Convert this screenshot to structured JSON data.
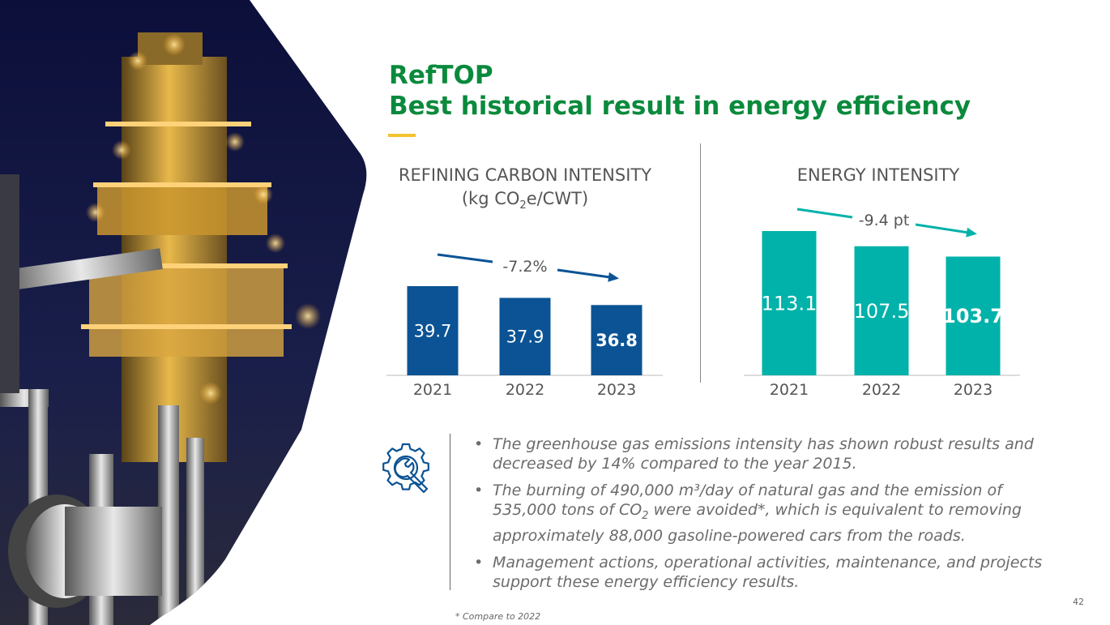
{
  "title": {
    "line1": "RefTOP",
    "line2": "Best historical result in energy efficiency"
  },
  "colors": {
    "title_green": "#0a8a3c",
    "accent_yellow": "#f2c230",
    "carbon_blue": "#0b5394",
    "energy_teal": "#00b2a9"
  },
  "chart_data": [
    {
      "type": "bar",
      "title": "REFINING CARBON INTENSITY",
      "subtitle_pre": "(kg CO",
      "subtitle_sub": "2",
      "subtitle_post": "e/CWT)",
      "categories": [
        "2021",
        "2022",
        "2023"
      ],
      "values": [
        39.7,
        37.9,
        36.8
      ],
      "labels": [
        "39.7",
        "37.9",
        "36.8"
      ],
      "highlight_last": true,
      "change_label": "-7.2%",
      "color": "#0b5394",
      "grid": false
    },
    {
      "type": "bar",
      "title": "ENERGY INTENSITY",
      "categories": [
        "2021",
        "2022",
        "2023"
      ],
      "values": [
        113.1,
        107.5,
        103.7
      ],
      "labels": [
        "113.1",
        "107.5",
        "103.7"
      ],
      "highlight_last": true,
      "change_label": "-9.4 pt",
      "color": "#00b2a9",
      "grid": false
    }
  ],
  "bullets": [
    {
      "text": "The greenhouse gas emissions intensity has shown robust results and decreased by 14% compared to the year 2015."
    },
    {
      "pre": "The burning of 490,000 m³/day of natural gas and the emission of 535,000 tons of CO",
      "sub": "2",
      "post": " were avoided*, which is equivalent to removing approximately 88,000 gasoline-powered cars from the roads."
    },
    {
      "text": "Management actions, operational activities, maintenance, and projects support these energy efficiency results."
    }
  ],
  "bullet_symbol": "•",
  "icon": "gear-wrench-icon",
  "footnote": "* Compare to 2022",
  "page_number": "42"
}
